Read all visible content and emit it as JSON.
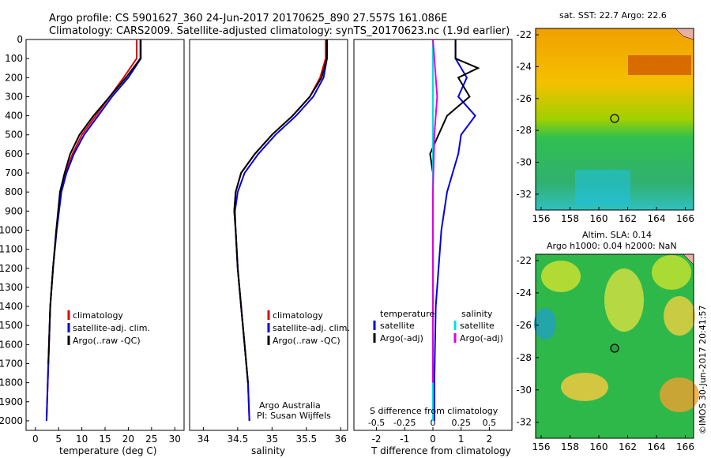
{
  "header": {
    "line1": "Argo profile: CS 5901627_360 24-Jun-2017 20170625_890 27.557S 161.086E",
    "line2": "Climatology: CARS2009. Satellite-adjusted climatology: synTS_20170623.nc (1.9d earlier)"
  },
  "colors": {
    "clim": "#e00000",
    "sat": "#0000e0",
    "argo": "#000000",
    "sal_sat": "#00e0e0",
    "sal_argo": "#e000e0"
  },
  "panel1": {
    "xlabel": "temperature (deg C)",
    "xticks": [
      "0",
      "5",
      "10",
      "15",
      "20",
      "25",
      "30"
    ],
    "legend": [
      "climatology",
      "satellite-adj. clim.",
      "Argo(..raw -QC)"
    ]
  },
  "panel2": {
    "xlabel": "salinity",
    "xticks": [
      "34",
      "34.5",
      "35",
      "35.5",
      "36"
    ],
    "legend": [
      "climatology",
      "satellite-adj. clim.",
      "Argo(..raw -QC)"
    ],
    "note1": "Argo Australia",
    "note2": "PI: Susan Wijffels"
  },
  "panel3": {
    "toplabel": "S difference from climatology",
    "top_ticks": [
      "-0.5",
      "-0.25",
      "0",
      "0.25",
      "0.5"
    ],
    "xlabel": "T difference from climatology",
    "xticks": [
      "-2",
      "-1",
      "0",
      "1",
      "2"
    ],
    "leg_temp_title": "temperature",
    "leg_sal_title": "salinity",
    "leg_sat": "satellite",
    "leg_argo": "Argo(-adj)",
    "leg_sat2": "satellite",
    "leg_argo2": "Argo(-adj)"
  },
  "yaxis": {
    "ticks": [
      "0",
      "100",
      "200",
      "300",
      "400",
      "500",
      "600",
      "700",
      "800",
      "900",
      "1000",
      "1100",
      "1200",
      "1300",
      "1400",
      "1500",
      "1600",
      "1700",
      "1800",
      "1900",
      "2000"
    ]
  },
  "map1": {
    "title": "sat. SST: 22.7  Argo: 22.6",
    "yticks": [
      "-22",
      "-24",
      "-26",
      "-28",
      "-30",
      "-32"
    ],
    "xticks": [
      "156",
      "158",
      "160",
      "162",
      "164",
      "166"
    ]
  },
  "map2": {
    "title1": "Altim. SLA: 0.14",
    "title2": "Argo h1000: 0.04 h2000: NaN",
    "yticks": [
      "-22",
      "-24",
      "-26",
      "-28",
      "-30",
      "-32"
    ],
    "xticks": [
      "156",
      "158",
      "160",
      "162",
      "164",
      "166"
    ]
  },
  "footer": "©IMOS 30-Jun-2017 20:41:57",
  "chart_data": [
    {
      "type": "line",
      "xlabel": "temperature (deg C)",
      "ylabel": "",
      "xlim": [
        -2,
        32
      ],
      "ylim": [
        2050,
        0
      ],
      "series": [
        {
          "name": "climatology",
          "x": [
            21.8,
            21.8,
            19,
            16,
            13,
            10,
            8,
            6.5,
            5.5,
            4.5,
            3.8,
            3.2,
            2.8,
            2.4
          ],
          "y": [
            0,
            100,
            200,
            300,
            400,
            500,
            600,
            700,
            800,
            1000,
            1200,
            1400,
            1700,
            2000
          ]
        },
        {
          "name": "satellite-adj. clim.",
          "x": [
            22.7,
            22.7,
            20,
            16.5,
            13.5,
            10.5,
            8.3,
            6.7,
            5.6,
            4.6,
            3.8,
            3.2,
            2.8,
            2.4
          ],
          "y": [
            0,
            100,
            200,
            300,
            400,
            500,
            600,
            700,
            800,
            1000,
            1200,
            1400,
            1700,
            2000
          ]
        },
        {
          "name": "Argo(..raw -QC)",
          "x": [
            22.6,
            22.6,
            19.5,
            16,
            12.5,
            9.5,
            7.5,
            6.3,
            5.3,
            4.5,
            3.8,
            3.2,
            2.8
          ],
          "y": [
            0,
            100,
            200,
            300,
            400,
            500,
            600,
            700,
            800,
            1000,
            1200,
            1400,
            1700
          ]
        }
      ]
    },
    {
      "type": "line",
      "xlabel": "salinity",
      "ylabel": "",
      "xlim": [
        33.8,
        36.1
      ],
      "ylim": [
        2050,
        0
      ],
      "series": [
        {
          "name": "climatology",
          "x": [
            35.78,
            35.78,
            35.7,
            35.55,
            35.3,
            35,
            34.75,
            34.55,
            34.47,
            34.45,
            34.47,
            34.5,
            34.55,
            34.6,
            34.65,
            34.67
          ],
          "y": [
            0,
            100,
            200,
            300,
            400,
            500,
            600,
            700,
            800,
            900,
            1000,
            1200,
            1400,
            1600,
            1800,
            2000
          ]
        },
        {
          "name": "satellite-adj. clim.",
          "x": [
            35.8,
            35.8,
            35.75,
            35.6,
            35.35,
            35.05,
            34.8,
            34.6,
            34.5,
            34.46,
            34.47,
            34.5,
            34.55,
            34.6,
            34.65,
            34.67
          ],
          "y": [
            0,
            100,
            200,
            300,
            400,
            500,
            600,
            700,
            800,
            900,
            1000,
            1200,
            1400,
            1600,
            1800,
            2000
          ]
        },
        {
          "name": "Argo(..raw -QC)",
          "x": [
            35.8,
            35.8,
            35.72,
            35.55,
            35.3,
            35,
            34.75,
            34.55,
            34.47,
            34.45,
            34.47,
            34.5,
            34.55,
            34.6,
            34.65
          ],
          "y": [
            0,
            100,
            200,
            300,
            400,
            500,
            600,
            700,
            800,
            900,
            1000,
            1200,
            1400,
            1600,
            1800
          ]
        }
      ]
    },
    {
      "type": "line",
      "xlabel": "T difference from climatology",
      "ylabel": "",
      "xlim": [
        -2.8,
        2.8
      ],
      "ylim": [
        2050,
        0
      ],
      "series": [
        {
          "name": "satellite",
          "x": [
            0.8,
            0.8,
            1.2,
            0.9,
            1.5,
            1.0,
            0.9,
            0.7,
            0.5,
            0.3,
            0.1,
            0.05,
            0.05
          ],
          "y": [
            0,
            100,
            200,
            300,
            400,
            500,
            600,
            700,
            800,
            1000,
            1400,
            1800,
            2000
          ]
        },
        {
          "name": "Argo(-adj)",
          "x": [
            0.8,
            0.8,
            1.6,
            0.9,
            1.3,
            0.5,
            0.2,
            -0.1,
            0,
            0,
            0,
            0
          ],
          "y": [
            0,
            100,
            150,
            200,
            300,
            400,
            500,
            600,
            700,
            900,
            1300,
            1800
          ]
        },
        {
          "name": "satellite",
          "x": [
            0,
            0,
            0,
            0,
            0,
            0,
            0
          ],
          "y": [
            0,
            200,
            400,
            800,
            1200,
            1600,
            2000
          ]
        },
        {
          "name": "Argo(-adj)",
          "x": [
            0,
            0.05,
            0.1,
            0.15,
            0.1,
            0.05,
            0,
            0
          ],
          "y": [
            0,
            100,
            200,
            300,
            400,
            500,
            800,
            1800
          ]
        }
      ]
    }
  ]
}
